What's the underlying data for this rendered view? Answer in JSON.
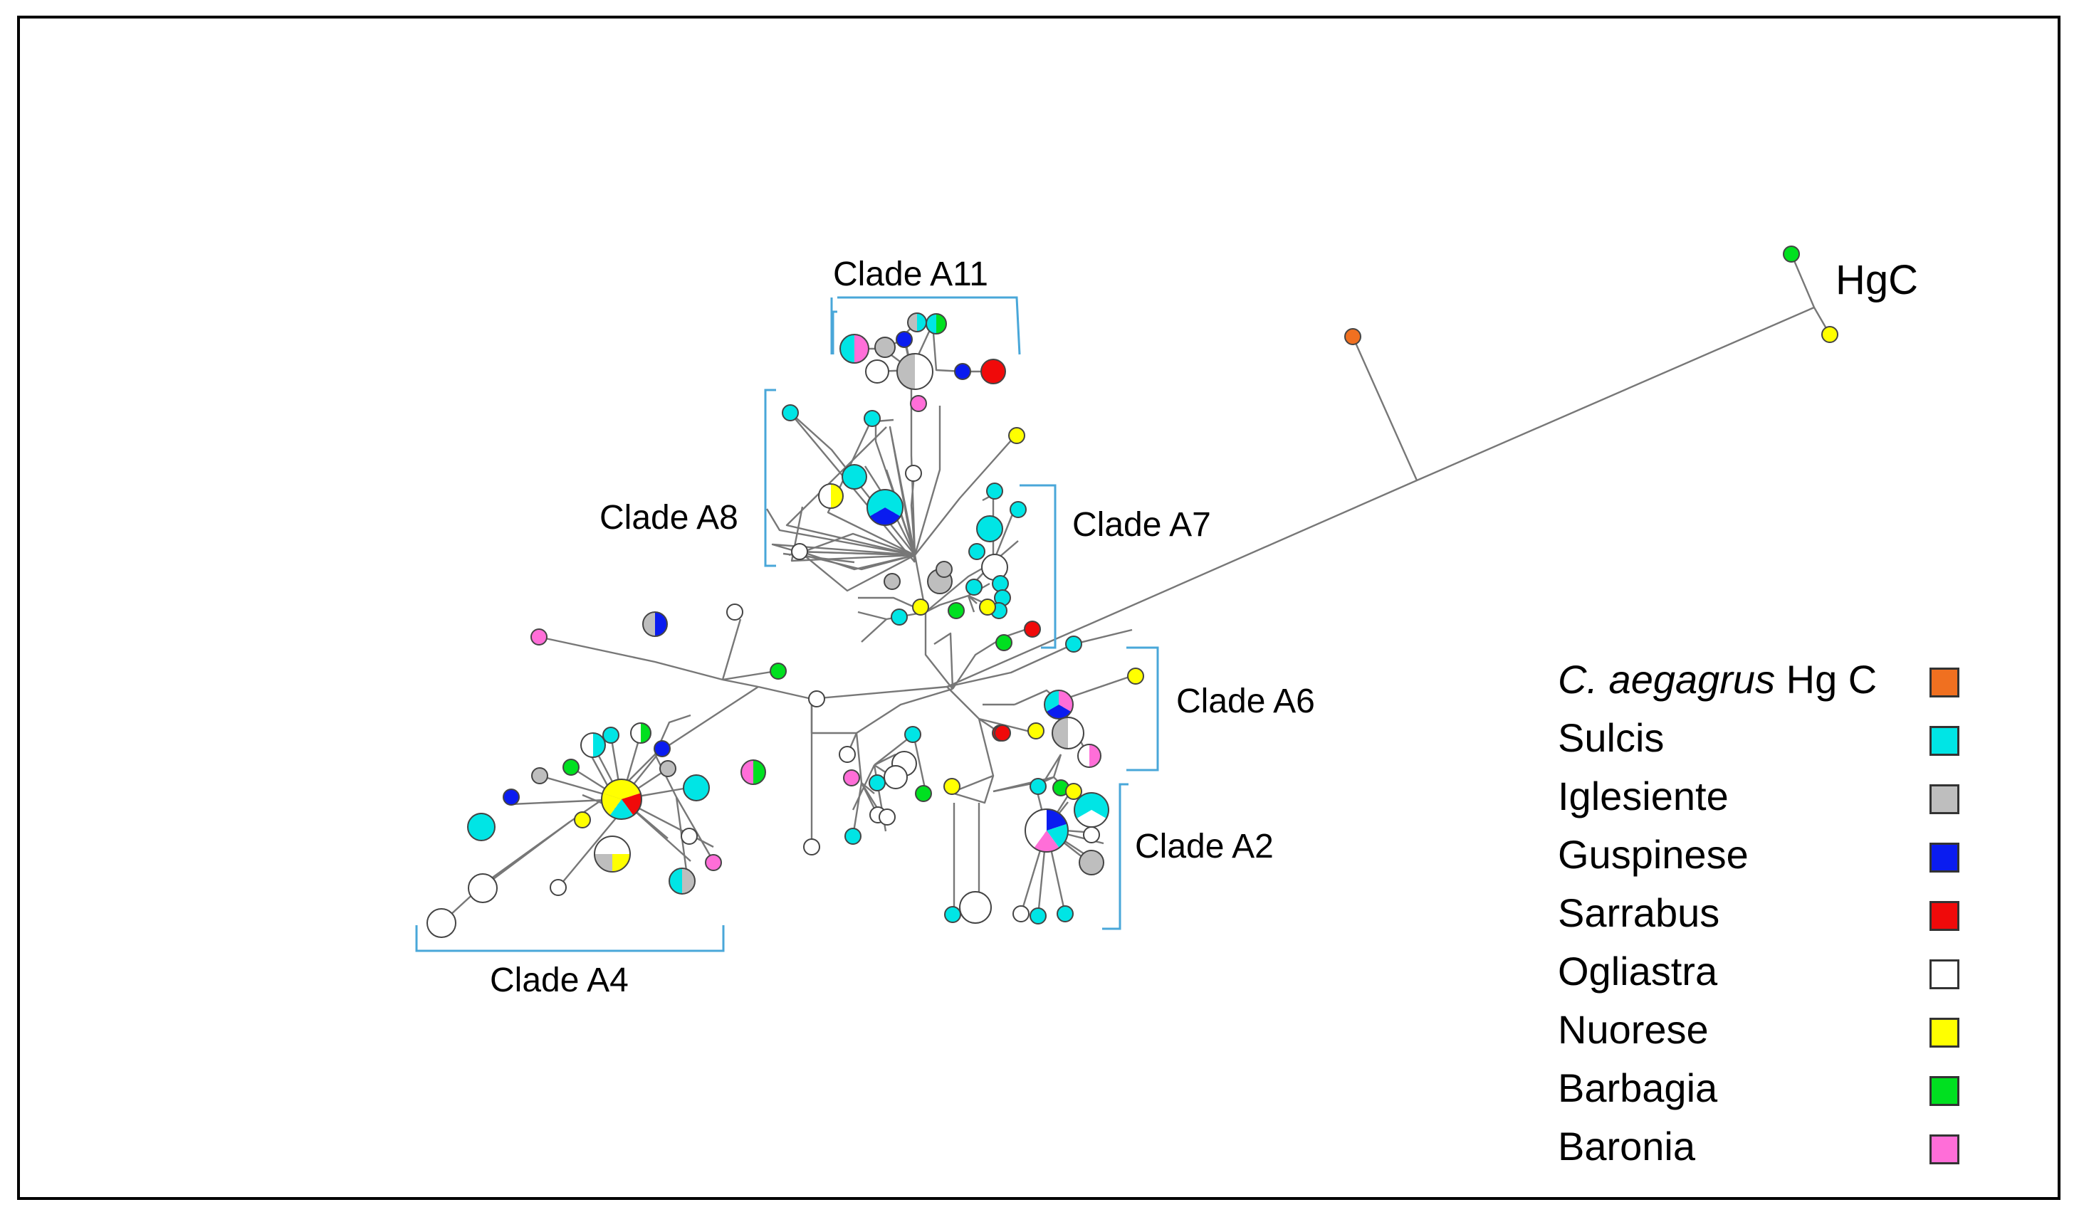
{
  "figure": {
    "hgc_label": "HgC",
    "clades": {
      "a11": "Clade A11",
      "a8": "Clade A8",
      "a7": "Clade A7",
      "a6": "Clade A6",
      "a2": "Clade A2",
      "a4": "Clade A4"
    }
  },
  "legend": {
    "items": [
      {
        "label_italic": "C. aegagrus",
        "label": " Hg C",
        "color": "#F07020"
      },
      {
        "label": "Sulcis",
        "color": "#00E5E5"
      },
      {
        "label": "Iglesiente",
        "color": "#BEBEBE"
      },
      {
        "label": "Guspinese",
        "color": "#0A1CF0"
      },
      {
        "label": "Sarrabus",
        "color": "#F00A0A"
      },
      {
        "label": "Ogliastra",
        "color": "#FFFFFF"
      },
      {
        "label": "Nuorese",
        "color": "#FFFF00"
      },
      {
        "label": "Barbagia",
        "color": "#00E020"
      },
      {
        "label": "Baronia",
        "color": "#FF6ED8"
      }
    ]
  }
}
